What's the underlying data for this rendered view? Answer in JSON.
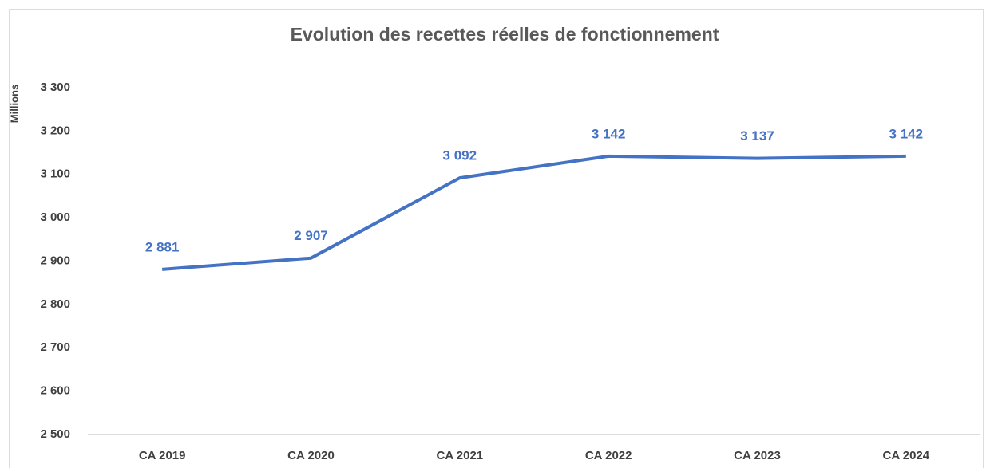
{
  "chart_data": {
    "type": "line",
    "title": "Evolution des recettes réelles de fonctionnement",
    "y_label": "Millions",
    "categories": [
      "CA 2019",
      "CA 2020",
      "CA 2021",
      "CA 2022",
      "CA 2023",
      "CA 2024"
    ],
    "values": [
      2881,
      2907,
      3092,
      3142,
      3137,
      3142
    ],
    "value_labels": [
      "2 881",
      "2 907",
      "3 092",
      "3 142",
      "3 137",
      "3 142"
    ],
    "color": "#4472c4",
    "ylim": [
      2500,
      3300
    ],
    "yticks": [
      {
        "value": 2500,
        "label": "2 500"
      },
      {
        "value": 2600,
        "label": "2 600"
      },
      {
        "value": 2700,
        "label": "2 700"
      },
      {
        "value": 2800,
        "label": "2 800"
      },
      {
        "value": 2900,
        "label": "2 900"
      },
      {
        "value": 3000,
        "label": "3 000"
      },
      {
        "value": 3100,
        "label": "3 100"
      },
      {
        "value": 3200,
        "label": "3 200"
      },
      {
        "value": 3300,
        "label": "3 300"
      }
    ],
    "grid": false
  }
}
